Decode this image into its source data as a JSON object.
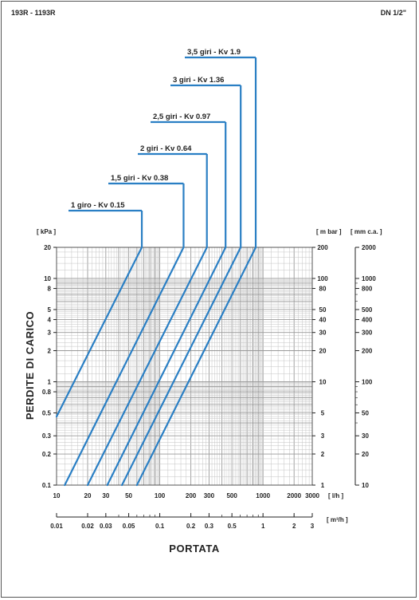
{
  "header": {
    "left": "193R - 1193R",
    "right": "DN 1/2\""
  },
  "colors": {
    "curve": "#2a7fc4",
    "grid": "#9a9a9a",
    "gridMinor": "#c4c4c4",
    "text": "#222222"
  },
  "chart_data": {
    "type": "line",
    "xlabel": "PORTATA",
    "ylabel": "PERDITE DI CARICO",
    "x_unit": "[ l/h ]",
    "x2_unit": "[ m³/h ]",
    "y_unit": "[ kPa ]",
    "y2_unit": "[ m bar ]",
    "y3_unit": "[ mm c.a. ]",
    "x_scale": "log",
    "y_scale": "log",
    "xlim": [
      10,
      3000
    ],
    "ylim": [
      0.1,
      20
    ],
    "x_ticks": [
      {
        "v": 10,
        "label": "10"
      },
      {
        "v": 20,
        "label": "20"
      },
      {
        "v": 30,
        "label": "30"
      },
      {
        "v": 50,
        "label": "50"
      },
      {
        "v": 100,
        "label": "100"
      },
      {
        "v": 200,
        "label": "200"
      },
      {
        "v": 300,
        "label": "300"
      },
      {
        "v": 500,
        "label": "500"
      },
      {
        "v": 1000,
        "label": "1000"
      },
      {
        "v": 2000,
        "label": "2000"
      },
      {
        "v": 3000,
        "label": "3000"
      }
    ],
    "x2_ticks": [
      {
        "v": 0.01,
        "label": "0.01"
      },
      {
        "v": 0.02,
        "label": "0.02"
      },
      {
        "v": 0.03,
        "label": "0.03"
      },
      {
        "v": 0.05,
        "label": "0.05"
      },
      {
        "v": 0.1,
        "label": "0.1"
      },
      {
        "v": 0.2,
        "label": "0.2"
      },
      {
        "v": 0.3,
        "label": "0.3"
      },
      {
        "v": 0.5,
        "label": "0.5"
      },
      {
        "v": 1,
        "label": "1"
      },
      {
        "v": 2,
        "label": "2"
      },
      {
        "v": 3,
        "label": "3"
      }
    ],
    "y_ticks": [
      {
        "v": 0.1,
        "label": "0.1"
      },
      {
        "v": 0.2,
        "label": "0.2"
      },
      {
        "v": 0.3,
        "label": "0.3"
      },
      {
        "v": 0.5,
        "label": "0.5"
      },
      {
        "v": 0.8,
        "label": "0.8"
      },
      {
        "v": 1,
        "label": "1"
      },
      {
        "v": 2,
        "label": "2"
      },
      {
        "v": 3,
        "label": "3"
      },
      {
        "v": 4,
        "label": "4"
      },
      {
        "v": 5,
        "label": "5"
      },
      {
        "v": 8,
        "label": "8"
      },
      {
        "v": 10,
        "label": "10"
      },
      {
        "v": 20,
        "label": "20"
      }
    ],
    "y2_ticks": [
      {
        "v": 0.1,
        "label": "1"
      },
      {
        "v": 0.2,
        "label": "2"
      },
      {
        "v": 0.3,
        "label": "3"
      },
      {
        "v": 0.5,
        "label": "5"
      },
      {
        "v": 1,
        "label": "10"
      },
      {
        "v": 2,
        "label": "20"
      },
      {
        "v": 3,
        "label": "30"
      },
      {
        "v": 4,
        "label": "40"
      },
      {
        "v": 5,
        "label": "50"
      },
      {
        "v": 8,
        "label": "80"
      },
      {
        "v": 10,
        "label": "100"
      },
      {
        "v": 20,
        "label": "200"
      }
    ],
    "y3_ticks": [
      {
        "v": 0.1,
        "label": "10"
      },
      {
        "v": 0.2,
        "label": "20"
      },
      {
        "v": 0.3,
        "label": "30"
      },
      {
        "v": 0.5,
        "label": "50"
      },
      {
        "v": 1,
        "label": "100"
      },
      {
        "v": 2,
        "label": "200"
      },
      {
        "v": 3,
        "label": "300"
      },
      {
        "v": 4,
        "label": "400"
      },
      {
        "v": 5,
        "label": "500"
      },
      {
        "v": 8,
        "label": "800"
      },
      {
        "v": 10,
        "label": "1000"
      },
      {
        "v": 20,
        "label": "2000"
      }
    ],
    "series": [
      {
        "name": "1 giro - Kv 0.15",
        "kv": 0.15,
        "points": [
          [
            10,
            0.46
          ],
          [
            67,
            20
          ]
        ]
      },
      {
        "name": "1,5 giri - Kv 0.38",
        "kv": 0.38,
        "points": [
          [
            12,
            0.1
          ],
          [
            170,
            20
          ]
        ]
      },
      {
        "name": "2 giri - Kv 0.64",
        "kv": 0.64,
        "points": [
          [
            20,
            0.1
          ],
          [
            286,
            20
          ]
        ]
      },
      {
        "name": "2,5 giri - Kv 0.97",
        "kv": 0.97,
        "points": [
          [
            31,
            0.1
          ],
          [
            434,
            20
          ]
        ]
      },
      {
        "name": "3 giri - Kv 1.36",
        "kv": 1.36,
        "points": [
          [
            43,
            0.1
          ],
          [
            608,
            20
          ]
        ]
      },
      {
        "name": "3,5 giri - Kv 1.9",
        "kv": 1.9,
        "points": [
          [
            60,
            0.1
          ],
          [
            850,
            20
          ]
        ]
      }
    ]
  }
}
